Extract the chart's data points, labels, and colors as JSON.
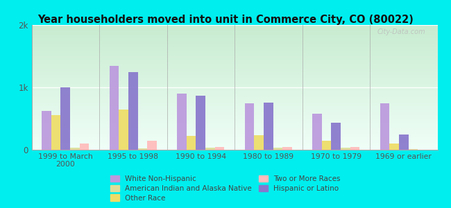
{
  "title": "Year householders moved into unit in Commerce City, CO (80022)",
  "categories": [
    "1999 to March\n2000",
    "1995 to 1998",
    "1990 to 1994",
    "1980 to 1989",
    "1970 to 1979",
    "1969 or earlier"
  ],
  "series": {
    "White Non-Hispanic": [
      620,
      1350,
      900,
      750,
      580,
      740
    ],
    "Other Race": [
      560,
      650,
      220,
      230,
      140,
      95
    ],
    "Hispanic or Latino": [
      1000,
      1250,
      870,
      760,
      430,
      240
    ],
    "American Indian and Alaska Native": [
      30,
      25,
      30,
      30,
      30,
      10
    ],
    "Two or More Races": [
      100,
      140,
      45,
      45,
      45,
      5
    ]
  },
  "colors": {
    "White Non-Hispanic": "#bb99dd",
    "Other Race": "#eedd66",
    "Hispanic or Latino": "#8877cc",
    "American Indian and Alaska Native": "#dddd99",
    "Two or More Races": "#ffbbbb"
  },
  "ylim": [
    0,
    2000
  ],
  "ytick_labels": [
    "0",
    "1k",
    "2k"
  ],
  "bg_color": "#00eeee",
  "plot_bg_color": "#dff0df",
  "watermark": "City-Data.com"
}
